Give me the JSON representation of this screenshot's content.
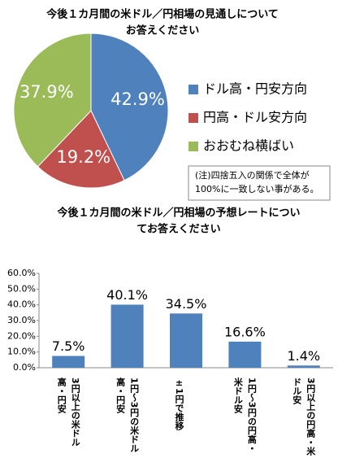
{
  "chart_data": [
    {
      "type": "pie",
      "title": [
        "今後１カ月間の米ドル／円相場の見通しについて",
        "お答えください"
      ],
      "categories": [
        "ドル高・円安方向",
        "円高・ドル安方向",
        "おおむね横ばい"
      ],
      "values": [
        42.9,
        19.2,
        37.9
      ],
      "value_labels": [
        "42.9%",
        "19.2%",
        "37.9%"
      ],
      "colors": [
        "#4f81bd",
        "#c0504d",
        "#9bbb59"
      ],
      "legend": "right",
      "annotation": [
        "(注)四捨五入の関係で全体が",
        "100%に一致しない事がある。"
      ]
    },
    {
      "type": "bar",
      "title": [
        "今後１カ月間の米ドル／円相場の予想レートについ",
        "てお答えください"
      ],
      "categories": [
        "3円以上の米ドル高・円安",
        "1円～3円の米ドル高・円安",
        "±1円で推移",
        "1円～3円の円高・米ドル安",
        "3円以上の円高・米ドル安"
      ],
      "values": [
        7.5,
        40.1,
        34.5,
        16.6,
        1.4
      ],
      "value_labels": [
        "7.5%",
        "40.1%",
        "34.5%",
        "16.6%",
        "1.4%"
      ],
      "color": "#4f81bd",
      "ylim": [
        0,
        60
      ],
      "yticks": [
        {
          "value": 0,
          "label": "0.0%"
        },
        {
          "value": 10,
          "label": "10.0%"
        },
        {
          "value": 20,
          "label": "20.0%"
        },
        {
          "value": 30,
          "label": "30.0%"
        },
        {
          "value": 40,
          "label": "40.0%"
        },
        {
          "value": 50,
          "label": "50.0%"
        },
        {
          "value": 60,
          "label": "60.0%"
        }
      ]
    }
  ]
}
